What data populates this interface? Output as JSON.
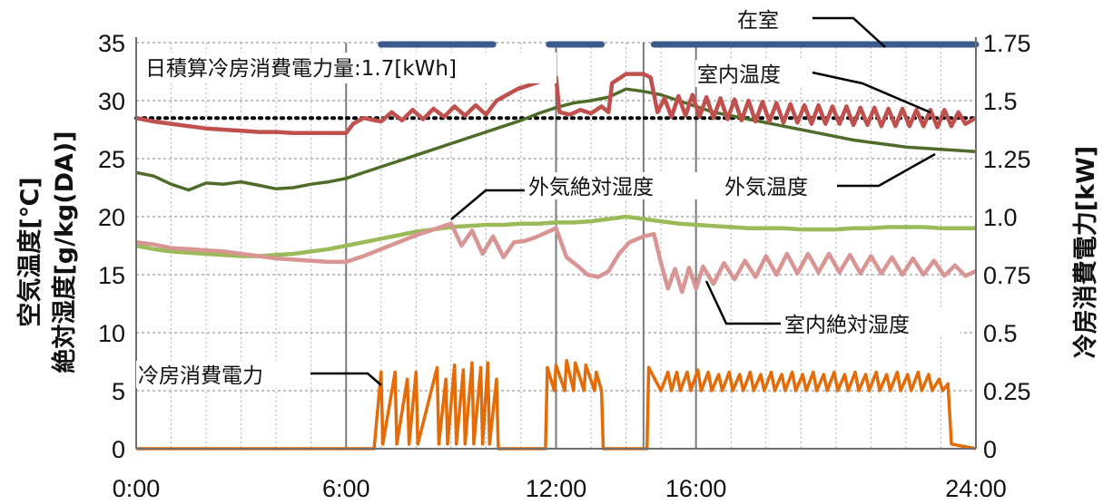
{
  "chart_data": {
    "type": "line",
    "x_unit": "hour",
    "xlim": [
      0,
      24
    ],
    "x_ticks": [
      0,
      6,
      12,
      16,
      24
    ],
    "x_tick_labels": [
      "0:00",
      "6:00",
      "12:00",
      "16:00",
      "24:00"
    ],
    "x_minor_gridlines": [
      1,
      2,
      3,
      4,
      5,
      7,
      8,
      9,
      10,
      11,
      13,
      14,
      15,
      17,
      18,
      19,
      20,
      21,
      22,
      23
    ],
    "x_major_gridlines": [
      6,
      12,
      14.5,
      16
    ],
    "y_left": {
      "label_line1": "空気温度[℃]",
      "label_line2": "絶対湿度[g/kg(DA)]",
      "ylim": [
        0,
        35
      ],
      "ticks": [
        0,
        5,
        10,
        15,
        20,
        25,
        30,
        35
      ]
    },
    "y_right": {
      "label": "冷房消費電力[kW]",
      "ylim": [
        0,
        1.75
      ],
      "ticks": [
        0,
        0.25,
        0.5,
        0.75,
        1.0,
        1.25,
        1.5,
        1.75
      ],
      "tick_labels": [
        "0",
        "0.25",
        "0.5",
        "0.75",
        "1.0",
        "1.25",
        "1.5",
        "1.75"
      ]
    },
    "grid": true,
    "reference_line": {
      "y": 28.5,
      "style": "dotted",
      "color": "#000000"
    },
    "annotation_text": "日積算冷房消費電力量:1.7[kWh]",
    "occupancy": {
      "label": "在室",
      "color": "#3a5a8c",
      "periods": [
        [
          7,
          10.2
        ],
        [
          11.8,
          13.3
        ],
        [
          14.8,
          24
        ]
      ]
    },
    "series": [
      {
        "name": "室内温度",
        "color": "#c0504d",
        "axis": "left",
        "x": [
          0,
          0.5,
          1,
          1.5,
          2,
          2.5,
          3,
          3.5,
          4,
          4.5,
          5,
          5.5,
          6,
          6.2,
          6.5,
          7,
          7.3,
          7.6,
          7.9,
          8.2,
          8.5,
          8.8,
          9.1,
          9.4,
          9.7,
          10,
          10.3,
          10.6,
          10.9,
          11.2,
          11.5,
          11.8,
          12,
          12.1,
          12.4,
          12.7,
          13,
          13.3,
          13.5,
          13.6,
          14,
          14.5,
          14.7,
          14.9,
          15.1,
          15.3,
          15.5,
          15.7,
          15.9,
          16.1,
          16.3,
          16.5,
          16.7,
          16.9,
          17.1,
          17.3,
          17.5,
          17.7,
          17.9,
          18.1,
          18.3,
          18.5,
          18.7,
          18.9,
          19.1,
          19.3,
          19.5,
          19.7,
          19.9,
          20.1,
          20.3,
          20.5,
          20.7,
          20.9,
          21.1,
          21.3,
          21.5,
          21.7,
          21.9,
          22.1,
          22.3,
          22.5,
          22.7,
          22.9,
          23.1,
          23.3,
          23.5,
          23.7,
          24
        ],
        "values": [
          28.5,
          28.2,
          28.0,
          27.8,
          27.6,
          27.5,
          27.4,
          27.3,
          27.3,
          27.2,
          27.2,
          27.2,
          27.2,
          28.0,
          28.5,
          28.2,
          29.0,
          28.3,
          29.2,
          28.4,
          29.3,
          28.6,
          29.5,
          28.7,
          29.6,
          28.8,
          30.0,
          30.5,
          31.0,
          31.3,
          31.6,
          32.0,
          32.0,
          29.0,
          28.8,
          29.2,
          28.9,
          29.5,
          29.0,
          31.5,
          32.3,
          32.3,
          32.0,
          29.0,
          30.2,
          28.6,
          30.4,
          28.7,
          30.5,
          28.6,
          30.3,
          28.5,
          30.2,
          28.4,
          30.1,
          28.3,
          30.0,
          28.2,
          29.9,
          28.2,
          29.8,
          28.1,
          29.7,
          28.1,
          29.6,
          28.0,
          29.6,
          28.0,
          29.5,
          28.0,
          29.5,
          27.9,
          29.4,
          27.9,
          29.4,
          27.8,
          29.3,
          27.8,
          29.3,
          27.8,
          29.2,
          27.8,
          29.2,
          27.7,
          29.2,
          27.8,
          29.0,
          28.0,
          28.5
        ]
      },
      {
        "name": "外気温度",
        "color": "#4f6b2a",
        "axis": "left",
        "x": [
          0,
          0.5,
          1,
          1.5,
          2,
          2.5,
          3,
          3.5,
          4,
          4.5,
          5,
          5.5,
          6,
          6.5,
          7,
          7.5,
          8,
          8.5,
          9,
          9.5,
          10,
          10.5,
          11,
          11.5,
          12,
          12.5,
          13,
          13.5,
          14,
          14.5,
          15,
          15.5,
          16,
          16.5,
          17,
          17.5,
          18,
          18.5,
          19,
          19.5,
          20,
          20.5,
          21,
          21.5,
          22,
          22.5,
          23,
          23.5,
          24
        ],
        "values": [
          23.8,
          23.5,
          22.8,
          22.3,
          22.9,
          22.8,
          23.0,
          22.7,
          22.4,
          22.5,
          22.8,
          23.0,
          23.3,
          23.8,
          24.3,
          24.8,
          25.3,
          25.8,
          26.3,
          26.8,
          27.3,
          27.8,
          28.3,
          28.9,
          29.4,
          29.8,
          30.0,
          30.3,
          31.0,
          30.8,
          30.5,
          30.0,
          29.5,
          29.0,
          28.7,
          28.4,
          28.1,
          27.8,
          27.5,
          27.2,
          26.9,
          26.6,
          26.4,
          26.2,
          26.0,
          25.9,
          25.8,
          25.7,
          25.6
        ]
      },
      {
        "name": "外気絶対湿度",
        "color": "#9bbb59",
        "axis": "left",
        "x": [
          0,
          0.5,
          1,
          1.5,
          2,
          2.5,
          3,
          3.5,
          4,
          4.5,
          5,
          5.5,
          6,
          6.5,
          7,
          7.5,
          8,
          8.5,
          9,
          9.5,
          10,
          10.5,
          11,
          11.5,
          12,
          12.5,
          13,
          13.5,
          14,
          14.5,
          15,
          15.5,
          16,
          16.5,
          17,
          17.5,
          18,
          18.5,
          19,
          19.5,
          20,
          20.5,
          21,
          21.5,
          22,
          22.5,
          23,
          23.5,
          24
        ],
        "values": [
          17.5,
          17.2,
          17.0,
          16.9,
          16.8,
          16.7,
          16.6,
          16.6,
          16.7,
          16.8,
          17.0,
          17.2,
          17.5,
          17.8,
          18.1,
          18.4,
          18.7,
          18.9,
          19.1,
          19.2,
          19.3,
          19.3,
          19.4,
          19.4,
          19.5,
          19.5,
          19.6,
          19.8,
          20.0,
          19.8,
          19.6,
          19.4,
          19.3,
          19.2,
          19.1,
          19.0,
          19.0,
          19.0,
          18.9,
          18.9,
          18.9,
          19.0,
          19.0,
          19.1,
          19.1,
          19.1,
          19.0,
          19.0,
          19.0
        ]
      },
      {
        "name": "室内絶対湿度",
        "color": "#d99594",
        "axis": "left",
        "x": [
          0,
          0.5,
          1,
          1.5,
          2,
          2.5,
          3,
          3.5,
          4,
          4.5,
          5,
          5.5,
          6,
          6.5,
          7,
          7.5,
          8,
          8.5,
          9,
          9.3,
          9.6,
          9.9,
          10.2,
          10.5,
          10.8,
          11.1,
          11.4,
          11.7,
          12,
          12.3,
          12.6,
          12.9,
          13.2,
          13.5,
          13.8,
          14.1,
          14.5,
          14.8,
          15.0,
          15.2,
          15.4,
          15.6,
          15.8,
          16.0,
          16.2,
          16.5,
          16.8,
          17.1,
          17.4,
          17.7,
          18.0,
          18.3,
          18.6,
          18.9,
          19.2,
          19.5,
          19.8,
          20.1,
          20.4,
          20.7,
          21.0,
          21.3,
          21.6,
          21.9,
          22.2,
          22.5,
          22.8,
          23.1,
          23.4,
          23.7,
          24
        ],
        "values": [
          17.8,
          17.6,
          17.3,
          17.2,
          17.1,
          17.0,
          16.8,
          16.6,
          16.4,
          16.3,
          16.2,
          16.1,
          16.1,
          16.6,
          17.2,
          17.8,
          18.4,
          18.9,
          19.4,
          17.5,
          18.8,
          16.8,
          18.3,
          16.5,
          17.8,
          17.9,
          18.2,
          18.6,
          19.0,
          16.5,
          15.8,
          15.0,
          14.8,
          15.3,
          16.8,
          17.8,
          18.3,
          18.5,
          16.0,
          13.8,
          15.5,
          13.5,
          15.6,
          13.8,
          15.7,
          14.2,
          16.0,
          14.6,
          16.2,
          14.8,
          16.6,
          15.0,
          16.8,
          15.1,
          16.8,
          15.2,
          16.8,
          15.2,
          16.7,
          15.1,
          16.6,
          15.1,
          16.5,
          15.0,
          16.4,
          15.0,
          16.2,
          14.9,
          15.8,
          14.9,
          15.3
        ]
      },
      {
        "name": "冷房消費電力",
        "color": "#e36c09",
        "axis": "right",
        "x": [
          0,
          6.8,
          7.0,
          7.05,
          7.4,
          7.45,
          7.75,
          7.8,
          8.0,
          8.05,
          8.6,
          8.65,
          8.85,
          8.9,
          9.1,
          9.15,
          9.35,
          9.4,
          9.6,
          9.65,
          9.85,
          9.9,
          10.05,
          10.1,
          10.3,
          10.35,
          11.7,
          11.75,
          11.95,
          12.0,
          12.25,
          12.3,
          12.5,
          12.55,
          12.8,
          12.85,
          13.1,
          13.15,
          13.3,
          13.35,
          14.6,
          14.65,
          15.0,
          15.2,
          15.3,
          15.45,
          15.55,
          15.75,
          15.85,
          16.05,
          16.15,
          16.35,
          16.45,
          16.65,
          16.75,
          16.95,
          17.05,
          17.25,
          17.35,
          17.55,
          17.65,
          17.85,
          17.95,
          18.15,
          18.25,
          18.45,
          18.55,
          18.75,
          18.85,
          19.05,
          19.15,
          19.35,
          19.45,
          19.65,
          19.75,
          19.95,
          20.05,
          20.25,
          20.35,
          20.55,
          20.65,
          20.85,
          20.95,
          21.15,
          21.25,
          21.45,
          21.55,
          21.75,
          21.85,
          22.05,
          22.15,
          22.35,
          22.45,
          22.65,
          22.75,
          22.95,
          23.05,
          23.2,
          23.3,
          24
        ],
        "values": [
          0,
          0,
          0.33,
          0.02,
          0.33,
          0.02,
          0.3,
          0.02,
          0.33,
          0.02,
          0.35,
          0.02,
          0.3,
          0.02,
          0.36,
          0.02,
          0.34,
          0.02,
          0.37,
          0.02,
          0.35,
          0.02,
          0.37,
          0.02,
          0.3,
          0,
          0,
          0.35,
          0.25,
          0.36,
          0.25,
          0.38,
          0.25,
          0.37,
          0.25,
          0.36,
          0.25,
          0.33,
          0.25,
          0,
          0,
          0.35,
          0.25,
          0.33,
          0.25,
          0.33,
          0.25,
          0.33,
          0.25,
          0.34,
          0.25,
          0.33,
          0.25,
          0.32,
          0.25,
          0.33,
          0.25,
          0.32,
          0.25,
          0.33,
          0.25,
          0.32,
          0.25,
          0.33,
          0.25,
          0.32,
          0.25,
          0.33,
          0.25,
          0.32,
          0.25,
          0.33,
          0.25,
          0.32,
          0.25,
          0.33,
          0.25,
          0.32,
          0.25,
          0.33,
          0.25,
          0.32,
          0.25,
          0.33,
          0.25,
          0.32,
          0.25,
          0.33,
          0.25,
          0.32,
          0.25,
          0.33,
          0.25,
          0.32,
          0.25,
          0.3,
          0.25,
          0.28,
          0.02,
          0
        ]
      }
    ],
    "series_labels": [
      {
        "series": "室内温度",
        "text": "室内温度"
      },
      {
        "series": "外気温度",
        "text": "外気温度"
      },
      {
        "series": "外気絶対湿度",
        "text": "外気絶対湿度"
      },
      {
        "series": "室内絶対湿度",
        "text": "室内絶対湿度"
      },
      {
        "series": "冷房消費電力",
        "text": "冷房消費電力"
      }
    ]
  }
}
